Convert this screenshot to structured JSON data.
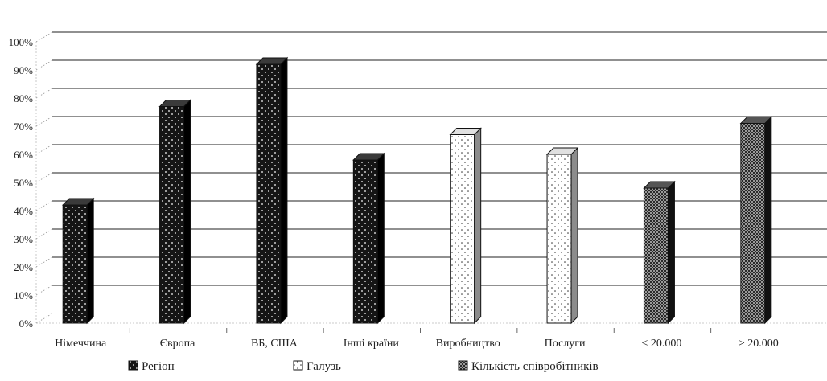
{
  "chart_data": {
    "type": "bar",
    "categories": [
      "Німеччина",
      "Європа",
      "ВБ, США",
      "Інші країни",
      "Виробництво",
      "Послуги",
      "< 20.000",
      "> 20.000"
    ],
    "values": [
      42,
      77,
      92,
      58,
      67,
      60,
      48,
      71
    ],
    "category_group": [
      0,
      0,
      0,
      0,
      1,
      1,
      2,
      2
    ],
    "groups": [
      {
        "name": "Регіон",
        "color": "#1a1a1a",
        "pattern": "dots-dark"
      },
      {
        "name": "Галузь",
        "color": "#ffffff",
        "pattern": "dots-light"
      },
      {
        "name": "Кількість співробітників",
        "color": "#333333",
        "pattern": "checker"
      }
    ],
    "y_ticks": [
      "0%",
      "10%",
      "20%",
      "30%",
      "40%",
      "50%",
      "60%",
      "70%",
      "80%",
      "90%",
      "100%"
    ],
    "ylim": [
      0,
      100
    ],
    "three_d": true,
    "legend_position": "bottom",
    "title": "",
    "xlabel": "",
    "ylabel": ""
  }
}
